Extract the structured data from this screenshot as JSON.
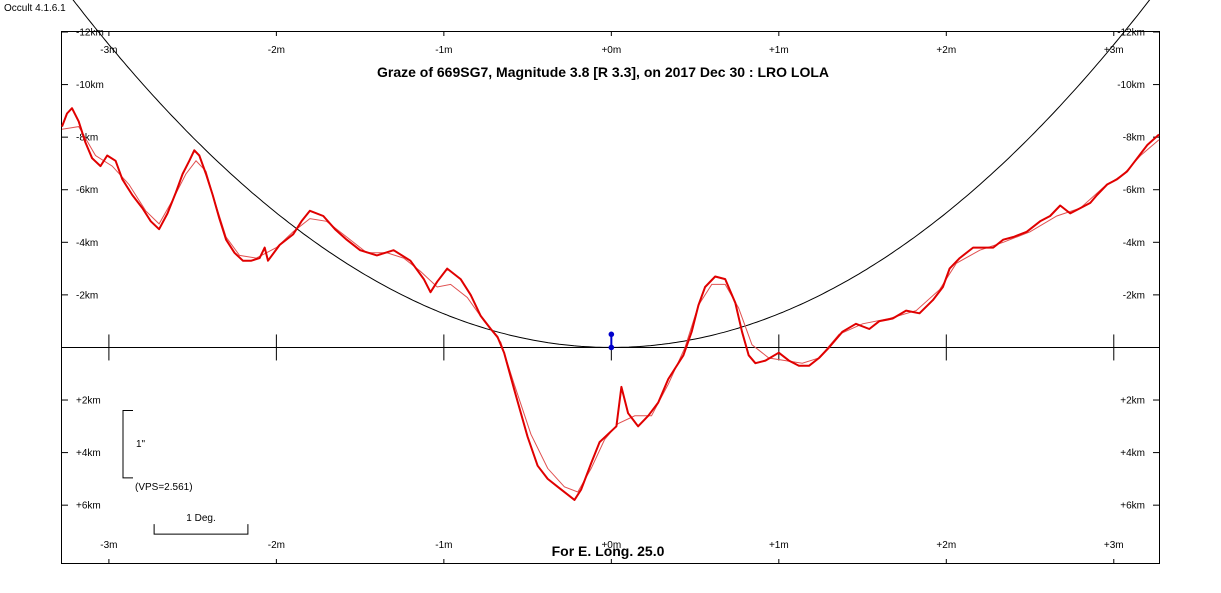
{
  "app": {
    "version_label": "Occult 4.1.6.1"
  },
  "chart_data": {
    "type": "line",
    "title": "Graze of  669SG7,  Magnitude 3.8 [R 3.3],  on 2017 Dec 30  :  LRO LOLA",
    "footer": "For E. Long. 25.0",
    "xlabel": "",
    "ylabel": "",
    "xlim": [
      -3.28,
      3.27
    ],
    "ylim": [
      -12,
      8.2
    ],
    "x_ticks": [
      -3,
      -2,
      -1,
      0,
      1,
      2,
      3
    ],
    "x_tick_labels": [
      "-3m",
      "-2m",
      "-1m",
      "+0m",
      "+1m",
      "+2m",
      "+3m"
    ],
    "y_ticks": [
      -12,
      -10,
      -8,
      -6,
      -4,
      -2,
      2,
      4,
      6
    ],
    "y_tick_labels": [
      "-12km",
      "-10km",
      "-8km",
      "-6km",
      "-4km",
      "-2km",
      "+2km",
      "+4km",
      "+6km"
    ],
    "grid": false,
    "scale_bar_vertical": {
      "label": "1\"",
      "note": "(VPS=2.561)",
      "value_km": 2.561
    },
    "scale_bar_horizontal": {
      "label": "1 Deg.",
      "value_m": 0.56
    },
    "star_marker": {
      "x": 0,
      "y": [
        0,
        -0.5
      ]
    },
    "colors": {
      "profile": "#e00000",
      "smooth_profile": "#e05050",
      "limb_curve": "#000000",
      "marker": "#0000cc"
    },
    "series": [
      {
        "key": "profile",
        "values": [
          [
            -3.28,
            -8.4
          ],
          [
            -3.25,
            -8.9
          ],
          [
            -3.22,
            -9.1
          ],
          [
            -3.18,
            -8.6
          ],
          [
            -3.14,
            -7.8
          ],
          [
            -3.1,
            -7.2
          ],
          [
            -3.05,
            -6.9
          ],
          [
            -3.01,
            -7.3
          ],
          [
            -2.96,
            -7.1
          ],
          [
            -2.92,
            -6.4
          ],
          [
            -2.86,
            -5.8
          ],
          [
            -2.8,
            -5.3
          ],
          [
            -2.75,
            -4.8
          ],
          [
            -2.7,
            -4.5
          ],
          [
            -2.65,
            -5.1
          ],
          [
            -2.6,
            -5.9
          ],
          [
            -2.56,
            -6.6
          ],
          [
            -2.52,
            -7.1
          ],
          [
            -2.49,
            -7.5
          ],
          [
            -2.46,
            -7.3
          ],
          [
            -2.42,
            -6.6
          ],
          [
            -2.38,
            -5.8
          ],
          [
            -2.34,
            -4.9
          ],
          [
            -2.3,
            -4.1
          ],
          [
            -2.25,
            -3.6
          ],
          [
            -2.2,
            -3.3
          ],
          [
            -2.15,
            -3.3
          ],
          [
            -2.1,
            -3.4
          ],
          [
            -2.07,
            -3.8
          ],
          [
            -2.05,
            -3.3
          ],
          [
            -1.98,
            -3.9
          ],
          [
            -1.9,
            -4.3
          ],
          [
            -1.85,
            -4.8
          ],
          [
            -1.8,
            -5.2
          ],
          [
            -1.72,
            -5.0
          ],
          [
            -1.65,
            -4.5
          ],
          [
            -1.58,
            -4.1
          ],
          [
            -1.5,
            -3.7
          ],
          [
            -1.4,
            -3.5
          ],
          [
            -1.3,
            -3.7
          ],
          [
            -1.2,
            -3.3
          ],
          [
            -1.12,
            -2.6
          ],
          [
            -1.08,
            -2.1
          ],
          [
            -1.04,
            -2.5
          ],
          [
            -0.98,
            -3.0
          ],
          [
            -0.9,
            -2.6
          ],
          [
            -0.84,
            -2.0
          ],
          [
            -0.78,
            -1.2
          ],
          [
            -0.72,
            -0.7
          ],
          [
            -0.68,
            -0.4
          ],
          [
            -0.64,
            0.2
          ],
          [
            -0.58,
            1.6
          ],
          [
            -0.5,
            3.4
          ],
          [
            -0.44,
            4.5
          ],
          [
            -0.38,
            5.0
          ],
          [
            -0.32,
            5.3
          ],
          [
            -0.26,
            5.6
          ],
          [
            -0.22,
            5.8
          ],
          [
            -0.18,
            5.4
          ],
          [
            -0.12,
            4.4
          ],
          [
            -0.07,
            3.6
          ],
          [
            -0.02,
            3.3
          ],
          [
            0.03,
            3.0
          ],
          [
            0.06,
            1.5
          ],
          [
            0.1,
            2.5
          ],
          [
            0.16,
            3.0
          ],
          [
            0.22,
            2.6
          ],
          [
            0.28,
            2.1
          ],
          [
            0.34,
            1.2
          ],
          [
            0.38,
            0.8
          ],
          [
            0.43,
            0.3
          ],
          [
            0.48,
            -0.6
          ],
          [
            0.52,
            -1.6
          ],
          [
            0.56,
            -2.3
          ],
          [
            0.62,
            -2.7
          ],
          [
            0.68,
            -2.6
          ],
          [
            0.74,
            -1.7
          ],
          [
            0.78,
            -0.6
          ],
          [
            0.82,
            0.3
          ],
          [
            0.86,
            0.6
          ],
          [
            0.92,
            0.5
          ],
          [
            1.0,
            0.2
          ],
          [
            1.06,
            0.5
          ],
          [
            1.12,
            0.7
          ],
          [
            1.18,
            0.7
          ],
          [
            1.24,
            0.4
          ],
          [
            1.3,
            0.0
          ],
          [
            1.38,
            -0.6
          ],
          [
            1.46,
            -0.9
          ],
          [
            1.54,
            -0.7
          ],
          [
            1.6,
            -1.0
          ],
          [
            1.68,
            -1.1
          ],
          [
            1.76,
            -1.4
          ],
          [
            1.84,
            -1.3
          ],
          [
            1.92,
            -1.8
          ],
          [
            1.98,
            -2.3
          ],
          [
            2.02,
            -3.0
          ],
          [
            2.08,
            -3.4
          ],
          [
            2.16,
            -3.8
          ],
          [
            2.22,
            -3.8
          ],
          [
            2.28,
            -3.8
          ],
          [
            2.34,
            -4.1
          ],
          [
            2.4,
            -4.2
          ],
          [
            2.48,
            -4.4
          ],
          [
            2.56,
            -4.8
          ],
          [
            2.62,
            -5.0
          ],
          [
            2.68,
            -5.4
          ],
          [
            2.74,
            -5.1
          ],
          [
            2.8,
            -5.3
          ],
          [
            2.86,
            -5.5
          ],
          [
            2.9,
            -5.8
          ],
          [
            2.96,
            -6.2
          ],
          [
            3.02,
            -6.4
          ],
          [
            3.08,
            -6.7
          ],
          [
            3.14,
            -7.2
          ],
          [
            3.2,
            -7.7
          ],
          [
            3.27,
            -8.1
          ]
        ]
      },
      {
        "key": "smooth_profile",
        "values": [
          [
            -3.28,
            -8.3
          ],
          [
            -3.18,
            -8.4
          ],
          [
            -3.08,
            -7.3
          ],
          [
            -2.98,
            -6.9
          ],
          [
            -2.88,
            -6.2
          ],
          [
            -2.78,
            -5.2
          ],
          [
            -2.7,
            -4.7
          ],
          [
            -2.62,
            -5.6
          ],
          [
            -2.54,
            -6.6
          ],
          [
            -2.48,
            -7.1
          ],
          [
            -2.42,
            -6.7
          ],
          [
            -2.36,
            -5.4
          ],
          [
            -2.3,
            -4.2
          ],
          [
            -2.22,
            -3.5
          ],
          [
            -2.12,
            -3.4
          ],
          [
            -2.0,
            -3.8
          ],
          [
            -1.9,
            -4.4
          ],
          [
            -1.8,
            -4.9
          ],
          [
            -1.7,
            -4.8
          ],
          [
            -1.58,
            -4.2
          ],
          [
            -1.46,
            -3.6
          ],
          [
            -1.34,
            -3.6
          ],
          [
            -1.24,
            -3.4
          ],
          [
            -1.14,
            -2.9
          ],
          [
            -1.04,
            -2.3
          ],
          [
            -0.96,
            -2.4
          ],
          [
            -0.86,
            -1.9
          ],
          [
            -0.76,
            -1.0
          ],
          [
            -0.66,
            -0.2
          ],
          [
            -0.58,
            1.4
          ],
          [
            -0.48,
            3.3
          ],
          [
            -0.38,
            4.6
          ],
          [
            -0.28,
            5.3
          ],
          [
            -0.2,
            5.5
          ],
          [
            -0.12,
            4.6
          ],
          [
            -0.04,
            3.5
          ],
          [
            0.04,
            2.9
          ],
          [
            0.14,
            2.6
          ],
          [
            0.24,
            2.6
          ],
          [
            0.34,
            1.4
          ],
          [
            0.44,
            0.0
          ],
          [
            0.52,
            -1.6
          ],
          [
            0.6,
            -2.4
          ],
          [
            0.68,
            -2.4
          ],
          [
            0.76,
            -1.5
          ],
          [
            0.84,
            -0.1
          ],
          [
            0.94,
            0.4
          ],
          [
            1.04,
            0.5
          ],
          [
            1.14,
            0.6
          ],
          [
            1.24,
            0.4
          ],
          [
            1.36,
            -0.5
          ],
          [
            1.5,
            -0.9
          ],
          [
            1.66,
            -1.1
          ],
          [
            1.82,
            -1.4
          ],
          [
            1.96,
            -2.2
          ],
          [
            2.06,
            -3.2
          ],
          [
            2.2,
            -3.7
          ],
          [
            2.34,
            -4.0
          ],
          [
            2.5,
            -4.4
          ],
          [
            2.66,
            -5.0
          ],
          [
            2.8,
            -5.3
          ],
          [
            2.94,
            -6.1
          ],
          [
            3.06,
            -6.6
          ],
          [
            3.16,
            -7.3
          ],
          [
            3.27,
            -7.9
          ]
        ]
      },
      {
        "key": "limb_curve",
        "function": "y = -1.28 * x^2",
        "xlim": [
          -3.28,
          3.27
        ]
      }
    ]
  }
}
